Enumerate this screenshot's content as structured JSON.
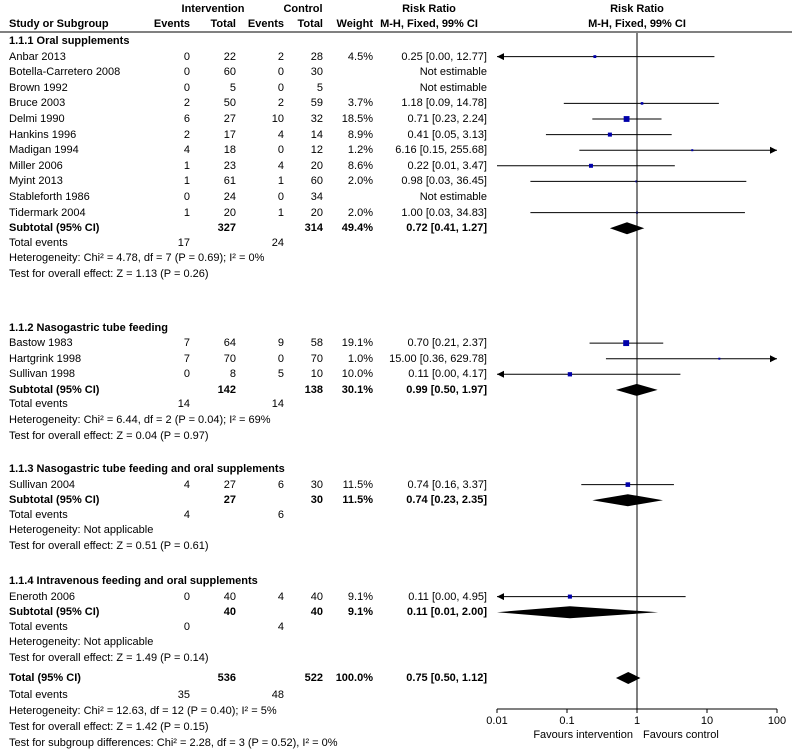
{
  "header": {
    "study_col": "Study or Subgroup",
    "intervention_group": "Intervention",
    "control_group": "Control",
    "events": "Events",
    "total": "Total",
    "weight": "Weight",
    "rr_title": "Risk Ratio",
    "rr_method": "M-H, Fixed, 99% CI"
  },
  "subgroups": [
    {
      "title": "1.1.1 Oral supplements",
      "studies": [
        {
          "study": "Anbar 2013",
          "ie": "0",
          "it": "22",
          "ce": "2",
          "ct": "28",
          "weight": "4.5%",
          "rr_text": "0.25 [0.00, 12.77]"
        },
        {
          "study": "Botella-Carretero 2008",
          "ie": "0",
          "it": "60",
          "ce": "0",
          "ct": "30",
          "weight": "",
          "rr_text": "Not estimable"
        },
        {
          "study": "Brown 1992",
          "ie": "0",
          "it": "5",
          "ce": "0",
          "ct": "5",
          "weight": "",
          "rr_text": "Not estimable"
        },
        {
          "study": "Bruce 2003",
          "ie": "2",
          "it": "50",
          "ce": "2",
          "ct": "59",
          "weight": "3.7%",
          "rr_text": "1.18 [0.09, 14.78]"
        },
        {
          "study": "Delmi 1990",
          "ie": "6",
          "it": "27",
          "ce": "10",
          "ct": "32",
          "weight": "18.5%",
          "rr_text": "0.71 [0.23, 2.24]"
        },
        {
          "study": "Hankins 1996",
          "ie": "2",
          "it": "17",
          "ce": "4",
          "ct": "14",
          "weight": "8.9%",
          "rr_text": "0.41 [0.05, 3.13]"
        },
        {
          "study": "Madigan 1994",
          "ie": "4",
          "it": "18",
          "ce": "0",
          "ct": "12",
          "weight": "1.2%",
          "rr_text": "6.16 [0.15, 255.68]"
        },
        {
          "study": "Miller 2006",
          "ie": "1",
          "it": "23",
          "ce": "4",
          "ct": "20",
          "weight": "8.6%",
          "rr_text": "0.22 [0.01, 3.47]"
        },
        {
          "study": "Myint 2013",
          "ie": "1",
          "it": "61",
          "ce": "1",
          "ct": "60",
          "weight": "2.0%",
          "rr_text": "0.98 [0.03, 36.45]"
        },
        {
          "study": "Stableforth 1986",
          "ie": "0",
          "it": "24",
          "ce": "0",
          "ct": "34",
          "weight": "",
          "rr_text": "Not estimable"
        },
        {
          "study": "Tidermark 2004",
          "ie": "1",
          "it": "20",
          "ce": "1",
          "ct": "20",
          "weight": "2.0%",
          "rr_text": "1.00 [0.03, 34.83]"
        }
      ],
      "subtotal": {
        "label": "Subtotal (95% CI)",
        "it": "327",
        "ct": "314",
        "weight": "49.4%",
        "rr_text": "0.72 [0.41, 1.27]"
      },
      "total_events": {
        "label": "Total events",
        "ie": "17",
        "ce": "24"
      },
      "heterogeneity": "Heterogeneity: Chi² = 4.78, df = 7 (P = 0.69); I² = 0%",
      "overall_effect": "Test for overall effect: Z = 1.13 (P = 0.26)"
    },
    {
      "title": "1.1.2 Nasogastric tube feeding",
      "studies": [
        {
          "study": "Bastow 1983",
          "ie": "7",
          "it": "64",
          "ce": "9",
          "ct": "58",
          "weight": "19.1%",
          "rr_text": "0.70 [0.21, 2.37]"
        },
        {
          "study": "Hartgrink 1998",
          "ie": "7",
          "it": "70",
          "ce": "0",
          "ct": "70",
          "weight": "1.0%",
          "rr_text": "15.00 [0.36, 629.78]"
        },
        {
          "study": "Sullivan 1998",
          "ie": "0",
          "it": "8",
          "ce": "5",
          "ct": "10",
          "weight": "10.0%",
          "rr_text": "0.11 [0.00, 4.17]"
        }
      ],
      "subtotal": {
        "label": "Subtotal (95% CI)",
        "it": "142",
        "ct": "138",
        "weight": "30.1%",
        "rr_text": "0.99 [0.50, 1.97]"
      },
      "total_events": {
        "label": "Total events",
        "ie": "14",
        "ce": "14"
      },
      "heterogeneity": "Heterogeneity: Chi² = 6.44, df = 2 (P = 0.04); I² = 69%",
      "overall_effect": "Test for overall effect: Z = 0.04 (P = 0.97)"
    },
    {
      "title": "1.1.3 Nasogastric tube feeding and oral supplements",
      "studies": [
        {
          "study": "Sullivan 2004",
          "ie": "4",
          "it": "27",
          "ce": "6",
          "ct": "30",
          "weight": "11.5%",
          "rr_text": "0.74 [0.16, 3.37]"
        }
      ],
      "subtotal": {
        "label": "Subtotal (95% CI)",
        "it": "27",
        "ct": "30",
        "weight": "11.5%",
        "rr_text": "0.74 [0.23, 2.35]"
      },
      "total_events": {
        "label": "Total events",
        "ie": "4",
        "ce": "6"
      },
      "heterogeneity": "Heterogeneity: Not applicable",
      "overall_effect": "Test for overall effect: Z = 0.51 (P = 0.61)"
    },
    {
      "title": "1.1.4 Intravenous feeding and oral supplements",
      "studies": [
        {
          "study": "Eneroth 2006",
          "ie": "0",
          "it": "40",
          "ce": "4",
          "ct": "40",
          "weight": "9.1%",
          "rr_text": "0.11 [0.00, 4.95]"
        }
      ],
      "subtotal": {
        "label": "Subtotal (95% CI)",
        "it": "40",
        "ct": "40",
        "weight": "9.1%",
        "rr_text": "0.11 [0.01, 2.00]"
      },
      "total_events": {
        "label": "Total events",
        "ie": "0",
        "ce": "4"
      },
      "heterogeneity": "Heterogeneity: Not applicable",
      "overall_effect": "Test for overall effect: Z = 1.49 (P = 0.14)"
    }
  ],
  "overall": {
    "label": "Total (95% CI)",
    "it": "536",
    "ct": "522",
    "weight": "100.0%",
    "rr_text": "0.75 [0.50, 1.12]",
    "total_events": {
      "label": "Total events",
      "ie": "35",
      "ce": "48"
    },
    "heterogeneity": "Heterogeneity: Chi² = 12.63, df = 12 (P = 0.40); I² = 5%",
    "overall_effect": "Test for overall effect: Z = 1.42 (P = 0.15)",
    "subgroup_differences": "Test for subgroup differences: Chi² = 2.28, df = 3 (P = 0.52), I² = 0%"
  },
  "axis": {
    "ticks": [
      "0.01",
      "0.1",
      "1",
      "10",
      "100"
    ],
    "favours_left": "Favours intervention",
    "favours_right": "Favours control"
  },
  "chart_data": {
    "type": "forest",
    "scale": "log",
    "xlim": [
      0.01,
      100
    ],
    "xticks": [
      0.01,
      0.1,
      1,
      10,
      100
    ],
    "reference_line": 1,
    "study_estimates": [
      {
        "study": "Anbar 2013",
        "rr": 0.25,
        "lo": 0.0,
        "hi": 12.77,
        "weight": 4.5
      },
      {
        "study": "Bruce 2003",
        "rr": 1.18,
        "lo": 0.09,
        "hi": 14.78,
        "weight": 3.7
      },
      {
        "study": "Delmi 1990",
        "rr": 0.71,
        "lo": 0.23,
        "hi": 2.24,
        "weight": 18.5
      },
      {
        "study": "Hankins 1996",
        "rr": 0.41,
        "lo": 0.05,
        "hi": 3.13,
        "weight": 8.9
      },
      {
        "study": "Madigan 1994",
        "rr": 6.16,
        "lo": 0.15,
        "hi": 255.68,
        "weight": 1.2
      },
      {
        "study": "Miller 2006",
        "rr": 0.22,
        "lo": 0.01,
        "hi": 3.47,
        "weight": 8.6
      },
      {
        "study": "Myint 2013",
        "rr": 0.98,
        "lo": 0.03,
        "hi": 36.45,
        "weight": 2.0
      },
      {
        "study": "Tidermark 2004",
        "rr": 1.0,
        "lo": 0.03,
        "hi": 34.83,
        "weight": 2.0
      },
      {
        "study": "Bastow 1983",
        "rr": 0.7,
        "lo": 0.21,
        "hi": 2.37,
        "weight": 19.1
      },
      {
        "study": "Hartgrink 1998",
        "rr": 15.0,
        "lo": 0.36,
        "hi": 629.78,
        "weight": 1.0
      },
      {
        "study": "Sullivan 1998",
        "rr": 0.11,
        "lo": 0.0,
        "hi": 4.17,
        "weight": 10.0
      },
      {
        "study": "Sullivan 2004",
        "rr": 0.74,
        "lo": 0.16,
        "hi": 3.37,
        "weight": 11.5
      },
      {
        "study": "Eneroth 2006",
        "rr": 0.11,
        "lo": 0.0,
        "hi": 4.95,
        "weight": 9.1
      }
    ],
    "pooled_estimates": [
      {
        "label": "1.1.1 Subtotal",
        "rr": 0.72,
        "lo": 0.41,
        "hi": 1.27
      },
      {
        "label": "1.1.2 Subtotal",
        "rr": 0.99,
        "lo": 0.5,
        "hi": 1.97
      },
      {
        "label": "1.1.3 Subtotal",
        "rr": 0.74,
        "lo": 0.23,
        "hi": 2.35
      },
      {
        "label": "1.1.4 Subtotal",
        "rr": 0.11,
        "lo": 0.01,
        "hi": 2.0
      },
      {
        "label": "Total",
        "rr": 0.75,
        "lo": 0.5,
        "hi": 1.12
      }
    ],
    "colors": {
      "study_marker": "#0000aa",
      "pooled_diamond": "#000000",
      "lines": "#000000"
    }
  }
}
